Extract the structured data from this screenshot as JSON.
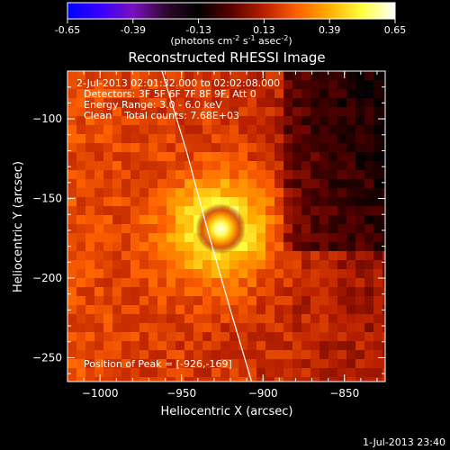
{
  "chart_data": {
    "type": "heatmap",
    "title": "Reconstructed RHESSI Image",
    "xlabel": "Heliocentric X (arcsec)",
    "ylabel": "Heliocentric Y (arcsec)",
    "xlim": [
      -1020,
      -825
    ],
    "ylim": [
      -265,
      -70
    ],
    "xticks": [
      -1000,
      -950,
      -900,
      -850
    ],
    "yticks": [
      -100,
      -150,
      -200,
      -250
    ],
    "colorbar": {
      "label_base": "(photons cm",
      "label_exp1": "-2",
      "label_mid": " s",
      "label_exp2": "-1",
      "label_mid2": " asec",
      "label_exp3": "-2",
      "label_end": ")",
      "range": [
        -0.65,
        0.65
      ],
      "ticks": [
        "-0.65",
        "-0.39",
        "-0.13",
        "0.13",
        "0.39",
        "0.65"
      ],
      "colormap": [
        "#0000ff",
        "#3a00ff",
        "#7a10c0",
        "#300830",
        "#000000",
        "#5a0000",
        "#b82000",
        "#ff6000",
        "#ffb000",
        "#ffff40",
        "#ffffff"
      ]
    },
    "peak": {
      "x": -926,
      "y": -169,
      "amplitude": 0.65
    },
    "limb_curve": [
      [
        -962,
        -70
      ],
      [
        -947,
        -120
      ],
      [
        -934,
        -170
      ],
      [
        -920,
        -220
      ],
      [
        -907,
        -265
      ]
    ]
  },
  "annotations": {
    "time_range": "2-Jul-2013 02:01:32.000 to 02:02:08.000",
    "detectors": "Detectors: 3F 5F 6F 7F 8F 9F, Att 0",
    "energy": "Energy Range: 3.0 - 6.0 keV",
    "clean": "Clean    Total counts: 7.68E+03",
    "peak_position": "Position of Peak = [-926,-169]"
  },
  "footer_timestamp": "1-Jul-2013 23:40"
}
